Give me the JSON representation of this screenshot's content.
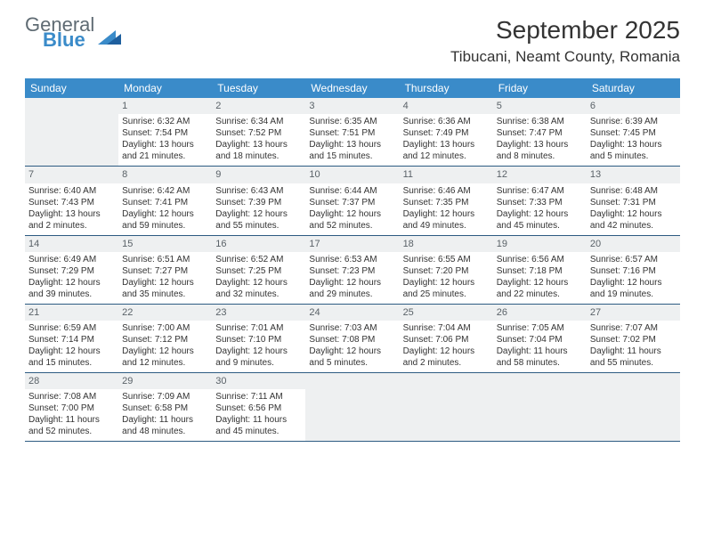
{
  "brand": {
    "general": "General",
    "blue": "Blue"
  },
  "title": "September 2025",
  "location": "Tibucani, Neamt County, Romania",
  "header_bg": "#3a8bc9",
  "header_text": "#ffffff",
  "num_bg": "#eef0f1",
  "line_color": "#2d5b82",
  "days_of_week": [
    "Sunday",
    "Monday",
    "Tuesday",
    "Wednesday",
    "Thursday",
    "Friday",
    "Saturday"
  ],
  "weeks": [
    [
      {
        "blank": true
      },
      {
        "num": "1",
        "sunrise": "Sunrise: 6:32 AM",
        "sunset": "Sunset: 7:54 PM",
        "day1": "Daylight: 13 hours",
        "day2": "and 21 minutes."
      },
      {
        "num": "2",
        "sunrise": "Sunrise: 6:34 AM",
        "sunset": "Sunset: 7:52 PM",
        "day1": "Daylight: 13 hours",
        "day2": "and 18 minutes."
      },
      {
        "num": "3",
        "sunrise": "Sunrise: 6:35 AM",
        "sunset": "Sunset: 7:51 PM",
        "day1": "Daylight: 13 hours",
        "day2": "and 15 minutes."
      },
      {
        "num": "4",
        "sunrise": "Sunrise: 6:36 AM",
        "sunset": "Sunset: 7:49 PM",
        "day1": "Daylight: 13 hours",
        "day2": "and 12 minutes."
      },
      {
        "num": "5",
        "sunrise": "Sunrise: 6:38 AM",
        "sunset": "Sunset: 7:47 PM",
        "day1": "Daylight: 13 hours",
        "day2": "and 8 minutes."
      },
      {
        "num": "6",
        "sunrise": "Sunrise: 6:39 AM",
        "sunset": "Sunset: 7:45 PM",
        "day1": "Daylight: 13 hours",
        "day2": "and 5 minutes."
      }
    ],
    [
      {
        "num": "7",
        "sunrise": "Sunrise: 6:40 AM",
        "sunset": "Sunset: 7:43 PM",
        "day1": "Daylight: 13 hours",
        "day2": "and 2 minutes."
      },
      {
        "num": "8",
        "sunrise": "Sunrise: 6:42 AM",
        "sunset": "Sunset: 7:41 PM",
        "day1": "Daylight: 12 hours",
        "day2": "and 59 minutes."
      },
      {
        "num": "9",
        "sunrise": "Sunrise: 6:43 AM",
        "sunset": "Sunset: 7:39 PM",
        "day1": "Daylight: 12 hours",
        "day2": "and 55 minutes."
      },
      {
        "num": "10",
        "sunrise": "Sunrise: 6:44 AM",
        "sunset": "Sunset: 7:37 PM",
        "day1": "Daylight: 12 hours",
        "day2": "and 52 minutes."
      },
      {
        "num": "11",
        "sunrise": "Sunrise: 6:46 AM",
        "sunset": "Sunset: 7:35 PM",
        "day1": "Daylight: 12 hours",
        "day2": "and 49 minutes."
      },
      {
        "num": "12",
        "sunrise": "Sunrise: 6:47 AM",
        "sunset": "Sunset: 7:33 PM",
        "day1": "Daylight: 12 hours",
        "day2": "and 45 minutes."
      },
      {
        "num": "13",
        "sunrise": "Sunrise: 6:48 AM",
        "sunset": "Sunset: 7:31 PM",
        "day1": "Daylight: 12 hours",
        "day2": "and 42 minutes."
      }
    ],
    [
      {
        "num": "14",
        "sunrise": "Sunrise: 6:49 AM",
        "sunset": "Sunset: 7:29 PM",
        "day1": "Daylight: 12 hours",
        "day2": "and 39 minutes."
      },
      {
        "num": "15",
        "sunrise": "Sunrise: 6:51 AM",
        "sunset": "Sunset: 7:27 PM",
        "day1": "Daylight: 12 hours",
        "day2": "and 35 minutes."
      },
      {
        "num": "16",
        "sunrise": "Sunrise: 6:52 AM",
        "sunset": "Sunset: 7:25 PM",
        "day1": "Daylight: 12 hours",
        "day2": "and 32 minutes."
      },
      {
        "num": "17",
        "sunrise": "Sunrise: 6:53 AM",
        "sunset": "Sunset: 7:23 PM",
        "day1": "Daylight: 12 hours",
        "day2": "and 29 minutes."
      },
      {
        "num": "18",
        "sunrise": "Sunrise: 6:55 AM",
        "sunset": "Sunset: 7:20 PM",
        "day1": "Daylight: 12 hours",
        "day2": "and 25 minutes."
      },
      {
        "num": "19",
        "sunrise": "Sunrise: 6:56 AM",
        "sunset": "Sunset: 7:18 PM",
        "day1": "Daylight: 12 hours",
        "day2": "and 22 minutes."
      },
      {
        "num": "20",
        "sunrise": "Sunrise: 6:57 AM",
        "sunset": "Sunset: 7:16 PM",
        "day1": "Daylight: 12 hours",
        "day2": "and 19 minutes."
      }
    ],
    [
      {
        "num": "21",
        "sunrise": "Sunrise: 6:59 AM",
        "sunset": "Sunset: 7:14 PM",
        "day1": "Daylight: 12 hours",
        "day2": "and 15 minutes."
      },
      {
        "num": "22",
        "sunrise": "Sunrise: 7:00 AM",
        "sunset": "Sunset: 7:12 PM",
        "day1": "Daylight: 12 hours",
        "day2": "and 12 minutes."
      },
      {
        "num": "23",
        "sunrise": "Sunrise: 7:01 AM",
        "sunset": "Sunset: 7:10 PM",
        "day1": "Daylight: 12 hours",
        "day2": "and 9 minutes."
      },
      {
        "num": "24",
        "sunrise": "Sunrise: 7:03 AM",
        "sunset": "Sunset: 7:08 PM",
        "day1": "Daylight: 12 hours",
        "day2": "and 5 minutes."
      },
      {
        "num": "25",
        "sunrise": "Sunrise: 7:04 AM",
        "sunset": "Sunset: 7:06 PM",
        "day1": "Daylight: 12 hours",
        "day2": "and 2 minutes."
      },
      {
        "num": "26",
        "sunrise": "Sunrise: 7:05 AM",
        "sunset": "Sunset: 7:04 PM",
        "day1": "Daylight: 11 hours",
        "day2": "and 58 minutes."
      },
      {
        "num": "27",
        "sunrise": "Sunrise: 7:07 AM",
        "sunset": "Sunset: 7:02 PM",
        "day1": "Daylight: 11 hours",
        "day2": "and 55 minutes."
      }
    ],
    [
      {
        "num": "28",
        "sunrise": "Sunrise: 7:08 AM",
        "sunset": "Sunset: 7:00 PM",
        "day1": "Daylight: 11 hours",
        "day2": "and 52 minutes."
      },
      {
        "num": "29",
        "sunrise": "Sunrise: 7:09 AM",
        "sunset": "Sunset: 6:58 PM",
        "day1": "Daylight: 11 hours",
        "day2": "and 48 minutes."
      },
      {
        "num": "30",
        "sunrise": "Sunrise: 7:11 AM",
        "sunset": "Sunset: 6:56 PM",
        "day1": "Daylight: 11 hours",
        "day2": "and 45 minutes."
      },
      {
        "blank": true
      },
      {
        "blank": true
      },
      {
        "blank": true
      },
      {
        "blank": true
      }
    ]
  ]
}
